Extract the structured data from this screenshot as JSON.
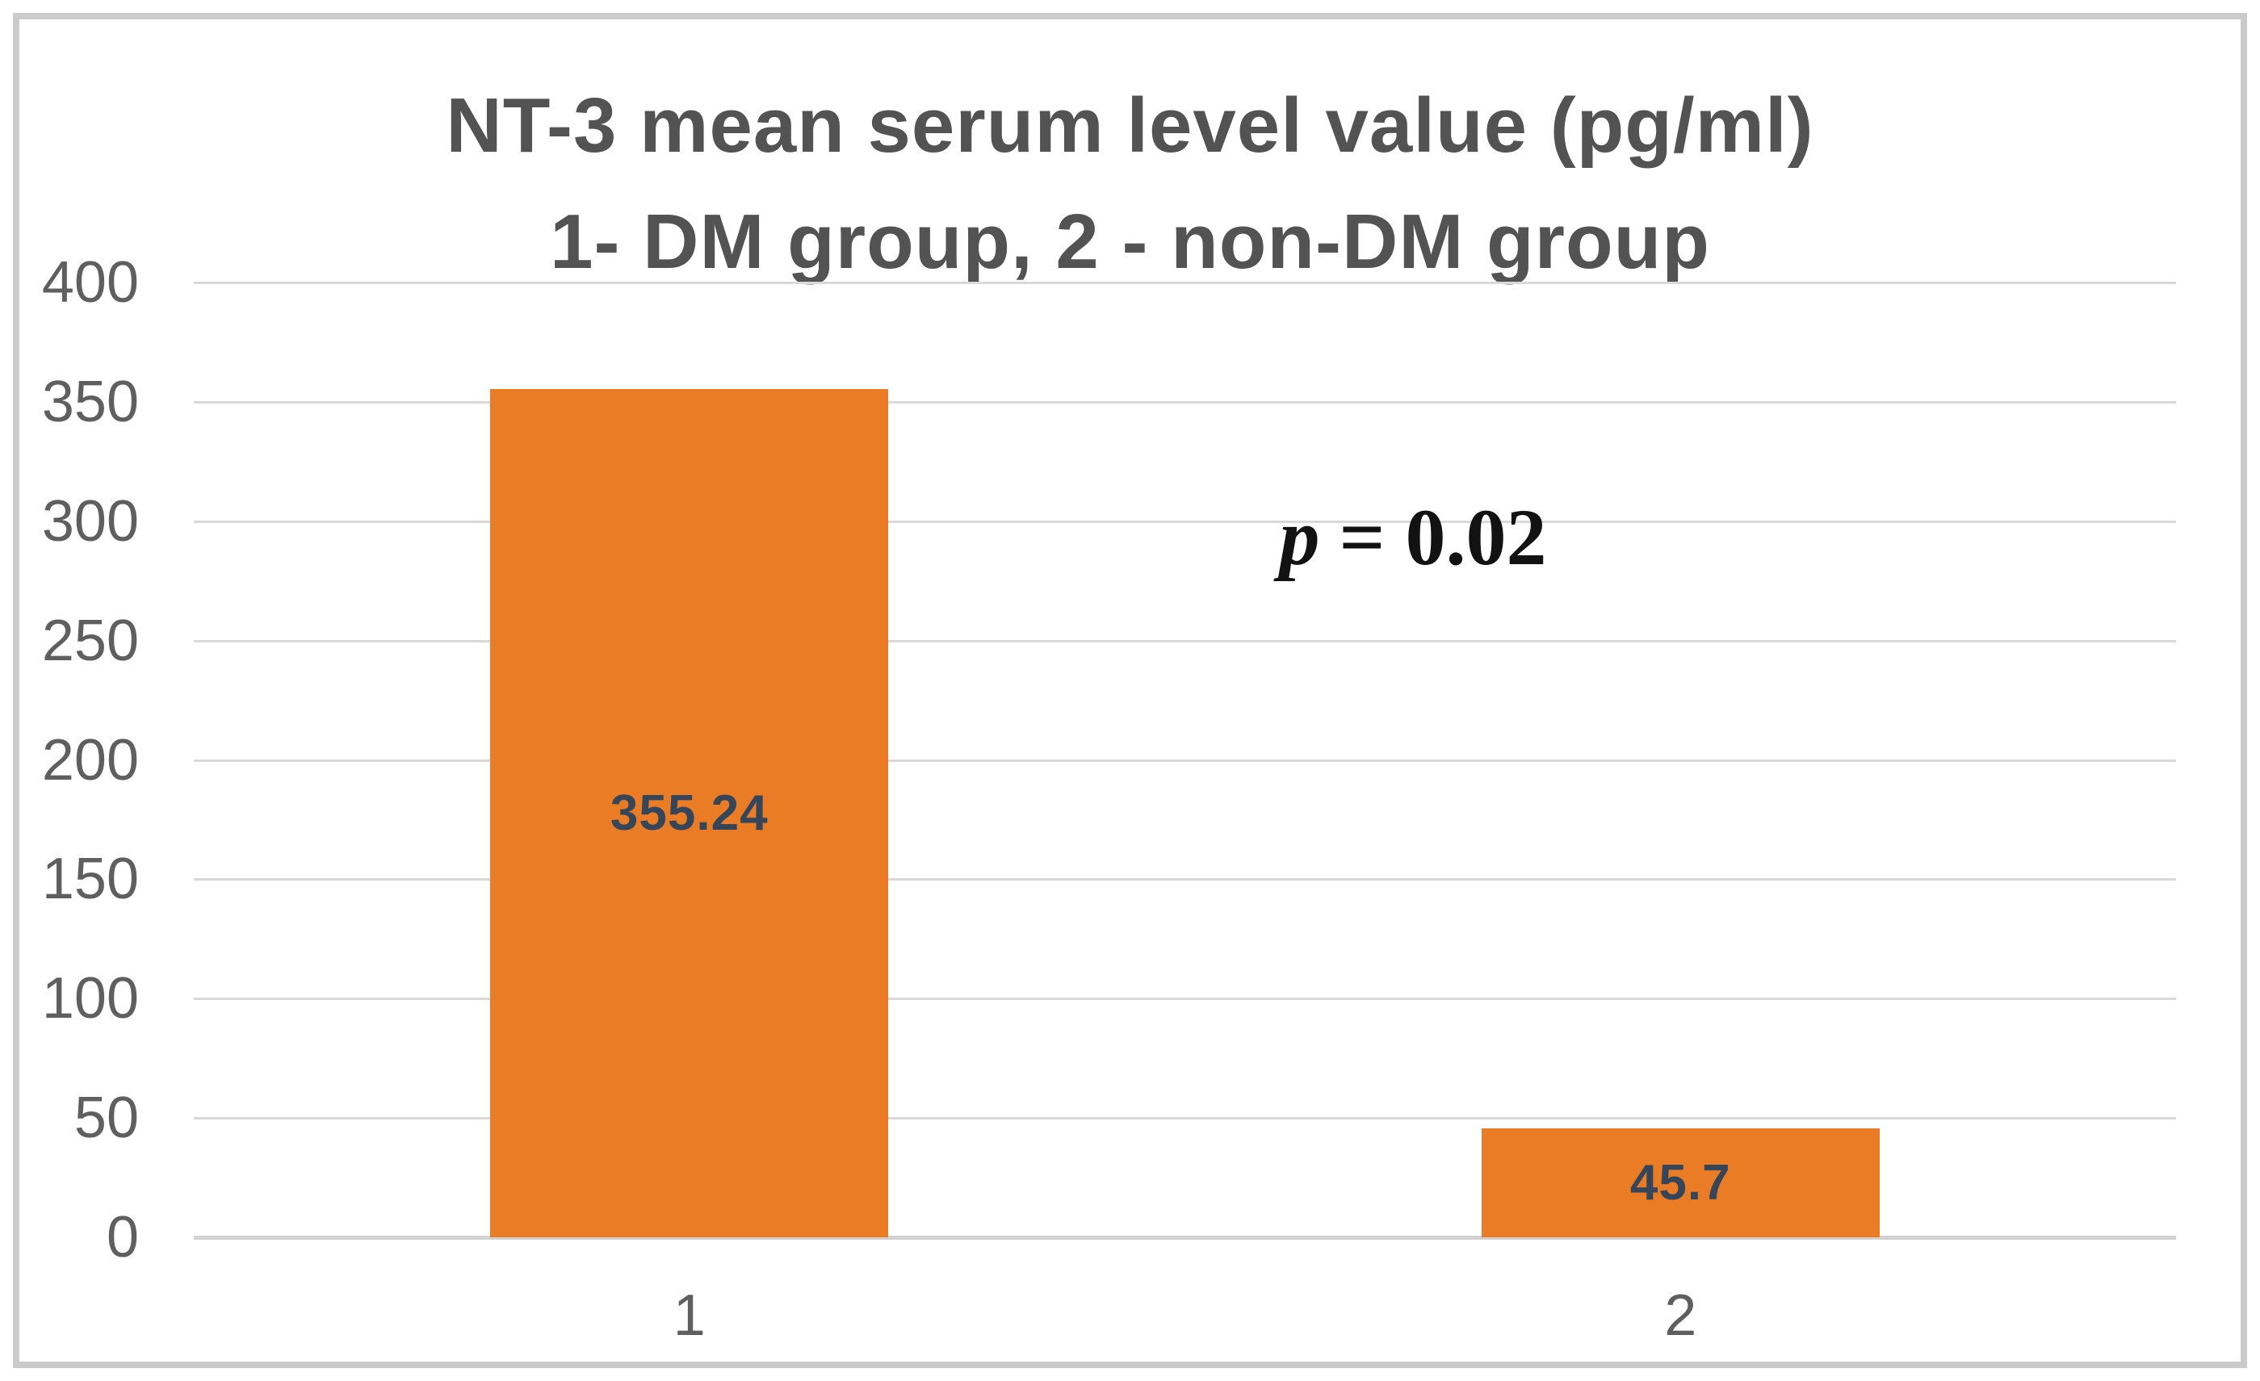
{
  "chart_data": {
    "type": "bar",
    "title": "NT-3 mean serum level value (pg/ml)",
    "subtitle": "1- DM group, 2 - non-DM group",
    "categories": [
      "1",
      "2"
    ],
    "series": [
      {
        "name": "NT-3 mean serum level (pg/ml)",
        "values": [
          355.24,
          45.7
        ]
      }
    ],
    "data_labels": [
      "355.24",
      "45.7"
    ],
    "annotation": {
      "text": "p = 0.02",
      "italic_part": "p",
      "rest_part": "= 0.02"
    },
    "ylim": [
      0,
      400
    ],
    "yticks": [
      0,
      50,
      100,
      150,
      200,
      250,
      300,
      350,
      400
    ],
    "ytick_labels": [
      "0",
      "50",
      "100",
      "150",
      "200",
      "250",
      "300",
      "350",
      "400"
    ],
    "grid": true,
    "legend": "none",
    "colors": {
      "background": "#FFFFFF",
      "bar": "#E97C24",
      "data_label": "#35465A",
      "title": "#535353",
      "axis_label": "#5F5F5F",
      "gridline": "#D9D9D9",
      "zero_line": "#D2D2D2",
      "frame_border": "#CBCBCB",
      "annotation": "#121212"
    }
  }
}
